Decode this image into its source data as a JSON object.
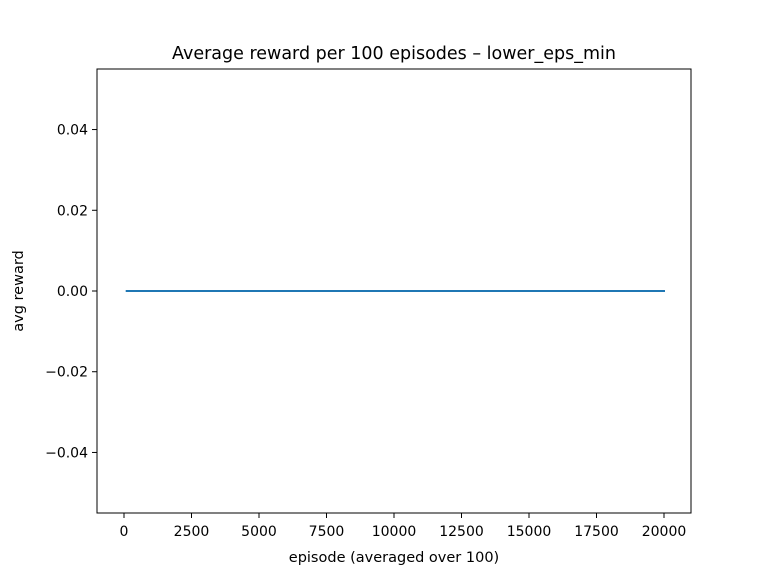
{
  "chart_data": {
    "type": "line",
    "title": "Average reward per 100 episodes – lower_eps_min",
    "xlabel": "episode (averaged over 100)",
    "ylabel": "avg reward",
    "xlim": [
      -1000,
      21000
    ],
    "ylim": [
      -0.055,
      0.055
    ],
    "x_ticks": [
      0,
      2500,
      5000,
      7500,
      10000,
      12500,
      15000,
      17500,
      20000
    ],
    "x_tick_labels": [
      "0",
      "2500",
      "5000",
      "7500",
      "10000",
      "12500",
      "15000",
      "17500",
      "20000"
    ],
    "y_ticks": [
      -0.04,
      -0.02,
      0.0,
      0.02,
      0.04
    ],
    "y_tick_labels": [
      "−0.04",
      "−0.02",
      "0.00",
      "0.02",
      "0.04"
    ],
    "grid": false,
    "legend": false,
    "series": [
      {
        "color": "#1f77b4",
        "x": [
          100,
          20000
        ],
        "y": [
          0.0,
          0.0
        ]
      }
    ]
  }
}
